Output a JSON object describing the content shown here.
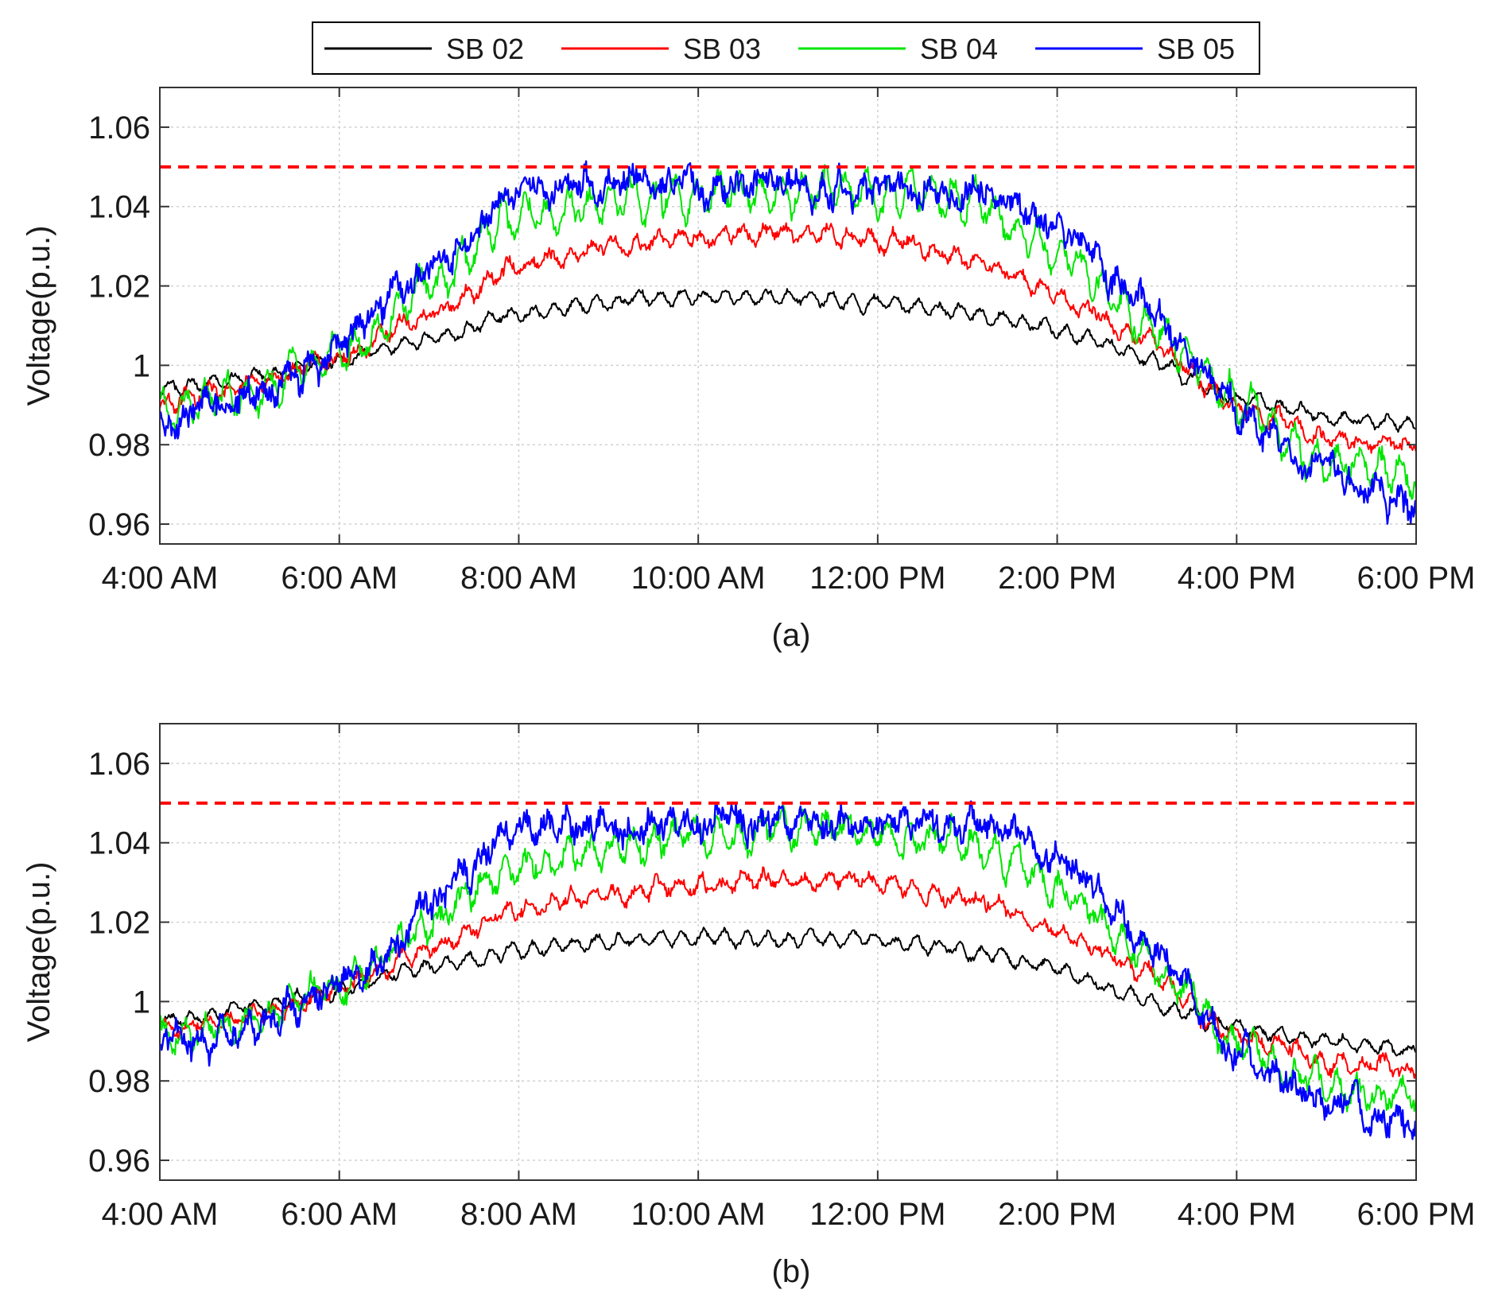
{
  "legend": {
    "entries": [
      {
        "name": "SB 02",
        "color": "#000000"
      },
      {
        "name": "SB 03",
        "color": "#ff0000"
      },
      {
        "name": "SB 04",
        "color": "#00e600"
      },
      {
        "name": "SB 05",
        "color": "#0000ff"
      }
    ]
  },
  "chart_data": [
    {
      "type": "line",
      "panel_caption": "(a)",
      "ylabel": "Voltage(p.u.)",
      "xlabel": "",
      "xlim": [
        4,
        18
      ],
      "ylim": [
        0.955,
        1.07
      ],
      "xticks": [
        4,
        6,
        8,
        10,
        12,
        14,
        16,
        18
      ],
      "xtick_labels": [
        "4:00 AM",
        "6:00 AM",
        "8:00 AM",
        "10:00 AM",
        "12:00 PM",
        "2:00 PM",
        "4:00 PM",
        "6:00 PM"
      ],
      "yticks": [
        0.96,
        0.98,
        1.0,
        1.02,
        1.04,
        1.06
      ],
      "ytick_labels": [
        "0.96",
        "0.98",
        "1",
        "1.02",
        "1.04",
        "1.06"
      ],
      "grid": true,
      "reference_line": {
        "y": 1.05,
        "color": "#ff0000",
        "style": "dashed"
      },
      "series": [
        {
          "name": "SB 02",
          "color": "#000000",
          "noise": 0.001,
          "ripple": 0.0015,
          "x": [
            4,
            5,
            6,
            7,
            8,
            9,
            10,
            11,
            12,
            13,
            14,
            15,
            16,
            17,
            18
          ],
          "y": [
            0.994,
            0.997,
            1.001,
            1.007,
            1.013,
            1.016,
            1.017,
            1.017,
            1.016,
            1.013,
            1.009,
            1.002,
            0.992,
            0.987,
            0.985
          ]
        },
        {
          "name": "SB 03",
          "color": "#ff0000",
          "noise": 0.0018,
          "ripple": 0.0015,
          "x": [
            4,
            5,
            6,
            7,
            8,
            9,
            10,
            11,
            12,
            13,
            14,
            15,
            16,
            17,
            18
          ],
          "y": [
            0.99,
            0.995,
            1.002,
            1.013,
            1.025,
            1.03,
            1.032,
            1.033,
            1.032,
            1.027,
            1.018,
            1.006,
            0.99,
            0.982,
            0.98
          ]
        },
        {
          "name": "SB 04",
          "color": "#00e600",
          "noise": 0.003,
          "ripple": 0.004,
          "x": [
            4,
            5,
            6,
            7,
            8,
            9,
            10,
            11,
            12,
            13,
            14,
            15,
            16,
            17,
            18
          ],
          "y": [
            0.988,
            0.993,
            1.003,
            1.02,
            1.037,
            1.041,
            1.043,
            1.044,
            1.044,
            1.042,
            1.028,
            1.012,
            0.99,
            0.976,
            0.972
          ]
        },
        {
          "name": "SB 05",
          "color": "#0000ff",
          "noise": 0.004,
          "ripple": 0.0015,
          "x": [
            4,
            5,
            6,
            7,
            8,
            9,
            10,
            11,
            12,
            13,
            14,
            15,
            16,
            17,
            18
          ],
          "y": [
            0.985,
            0.992,
            1.004,
            1.024,
            1.045,
            1.046,
            1.045,
            1.045,
            1.045,
            1.044,
            1.035,
            1.015,
            0.988,
            0.972,
            0.965
          ]
        }
      ]
    },
    {
      "type": "line",
      "panel_caption": "(b)",
      "ylabel": "Voltage(p.u.)",
      "xlabel": "",
      "xlim": [
        4,
        18
      ],
      "ylim": [
        0.955,
        1.07
      ],
      "xticks": [
        4,
        6,
        8,
        10,
        12,
        14,
        16,
        18
      ],
      "xtick_labels": [
        "4:00 AM",
        "6:00 AM",
        "8:00 AM",
        "10:00 AM",
        "12:00 PM",
        "2:00 PM",
        "4:00 PM",
        "6:00 PM"
      ],
      "yticks": [
        0.96,
        0.98,
        1.0,
        1.02,
        1.04,
        1.06
      ],
      "ytick_labels": [
        "0.96",
        "0.98",
        "1",
        "1.02",
        "1.04",
        "1.06"
      ],
      "grid": true,
      "reference_line": {
        "y": 1.05,
        "color": "#ff0000",
        "style": "dashed"
      },
      "series": [
        {
          "name": "SB 02",
          "color": "#000000",
          "noise": 0.001,
          "ripple": 0.0015,
          "x": [
            4,
            5,
            6,
            7,
            8,
            9,
            10,
            11,
            12,
            13,
            14,
            15,
            16,
            17,
            18
          ],
          "y": [
            0.995,
            0.998,
            1.003,
            1.009,
            1.013,
            1.015,
            1.016,
            1.016,
            1.015,
            1.013,
            1.008,
            1.0,
            0.993,
            0.99,
            0.988
          ]
        },
        {
          "name": "SB 03",
          "color": "#ff0000",
          "noise": 0.0018,
          "ripple": 0.0015,
          "x": [
            4,
            5,
            6,
            7,
            8,
            9,
            10,
            11,
            12,
            13,
            14,
            15,
            16,
            17,
            18
          ],
          "y": [
            0.993,
            0.996,
            1.003,
            1.013,
            1.023,
            1.027,
            1.03,
            1.031,
            1.03,
            1.026,
            1.018,
            1.006,
            0.992,
            0.985,
            0.983
          ]
        },
        {
          "name": "SB 04",
          "color": "#00e600",
          "noise": 0.003,
          "ripple": 0.003,
          "x": [
            4,
            5,
            6,
            7,
            8,
            9,
            10,
            11,
            12,
            13,
            14,
            15,
            16,
            17,
            18
          ],
          "y": [
            0.991,
            0.995,
            1.003,
            1.02,
            1.034,
            1.039,
            1.042,
            1.044,
            1.043,
            1.041,
            1.028,
            1.012,
            0.99,
            0.978,
            0.975
          ]
        },
        {
          "name": "SB 05",
          "color": "#0000ff",
          "noise": 0.004,
          "ripple": 0.0015,
          "x": [
            4,
            5,
            6,
            7,
            8,
            9,
            10,
            11,
            12,
            13,
            14,
            15,
            16,
            17,
            18
          ],
          "y": [
            0.988,
            0.993,
            1.003,
            1.025,
            1.044,
            1.045,
            1.045,
            1.045,
            1.045,
            1.045,
            1.036,
            1.016,
            0.988,
            0.974,
            0.968
          ]
        }
      ]
    }
  ]
}
